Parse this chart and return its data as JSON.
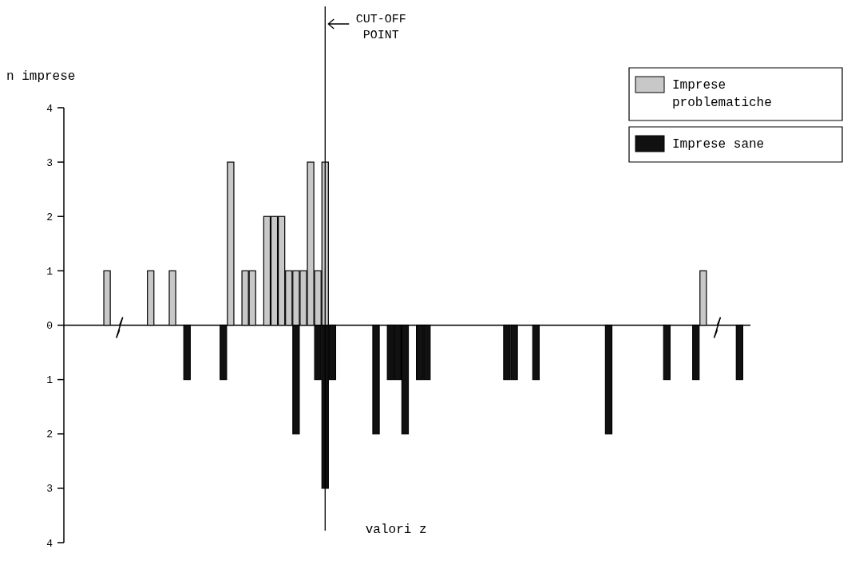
{
  "chart_data": {
    "type": "bar",
    "stacked": true,
    "ylabel": "n imprese",
    "xlabel": "valori z",
    "categories": [
      null,
      null,
      null,
      null,
      null,
      null,
      null,
      null,
      null,
      null,
      null,
      null,
      null,
      null,
      null,
      null,
      null,
      null,
      null,
      null,
      null,
      null,
      null,
      null,
      null,
      null,
      null,
      null,
      null,
      null,
      null,
      null,
      null,
      null,
      null,
      null,
      null,
      null,
      null,
      null,
      null,
      null,
      null,
      null,
      null,
      null,
      null,
      null,
      null,
      null,
      null,
      null,
      null,
      null,
      null,
      null,
      null,
      null,
      null,
      null,
      null,
      null,
      null,
      null,
      null,
      null,
      null,
      null,
      null,
      null,
      null,
      null,
      null,
      null,
      null,
      null,
      null,
      null,
      null,
      null,
      null,
      null,
      null,
      null,
      null,
      null,
      null,
      null,
      null,
      null,
      null,
      null,
      null,
      null
    ],
    "series": [
      {
        "name": "Imprese problematiche",
        "color": "#c8c8c8",
        "values": [
          null,
          null,
          null,
          null,
          null,
          1,
          null,
          null,
          null,
          null,
          null,
          1,
          null,
          null,
          1,
          null,
          null,
          null,
          null,
          null,
          null,
          null,
          3,
          null,
          1,
          1,
          null,
          2,
          2,
          2,
          1,
          1,
          1,
          3,
          1,
          3,
          null,
          null,
          null,
          null,
          null,
          null,
          null,
          null,
          null,
          null,
          null,
          null,
          null,
          null,
          null,
          null,
          null,
          null,
          null,
          null,
          null,
          null,
          null,
          null,
          null,
          null,
          null,
          null,
          null,
          null,
          null,
          null,
          null,
          null,
          null,
          null,
          null,
          null,
          null,
          null,
          null,
          null,
          null,
          null,
          null,
          null,
          null,
          null,
          null,
          null,
          null,
          1,
          null,
          null,
          null,
          null,
          null,
          null
        ]
      },
      {
        "name": "Imprese sane",
        "color": "#111111",
        "values": [
          null,
          null,
          null,
          null,
          null,
          null,
          null,
          null,
          null,
          null,
          null,
          null,
          null,
          null,
          null,
          null,
          -1,
          null,
          null,
          null,
          null,
          -1,
          null,
          null,
          null,
          null,
          null,
          null,
          null,
          null,
          null,
          -2,
          null,
          null,
          -1,
          -3,
          -1,
          null,
          null,
          null,
          null,
          null,
          -2,
          null,
          -1,
          -1,
          -2,
          null,
          -1,
          -1,
          null,
          null,
          null,
          null,
          null,
          null,
          null,
          null,
          null,
          null,
          -1,
          -1,
          null,
          null,
          -1,
          null,
          null,
          null,
          null,
          null,
          null,
          null,
          null,
          null,
          -2,
          null,
          null,
          null,
          null,
          null,
          null,
          null,
          -1,
          null,
          null,
          null,
          -1,
          null,
          null,
          null,
          null,
          null,
          -1,
          null
        ]
      }
    ],
    "ylim": [
      -4,
      4
    ],
    "yticks": [
      4,
      3,
      2,
      1,
      0,
      {
        "value": -1,
        "label": "1"
      },
      {
        "value": -2,
        "label": "2"
      },
      {
        "value": -3,
        "label": "3"
      },
      {
        "value": -4,
        "label": "4"
      }
    ],
    "annotations": [
      "CUT-OFF POINT"
    ],
    "legend": "top right"
  }
}
